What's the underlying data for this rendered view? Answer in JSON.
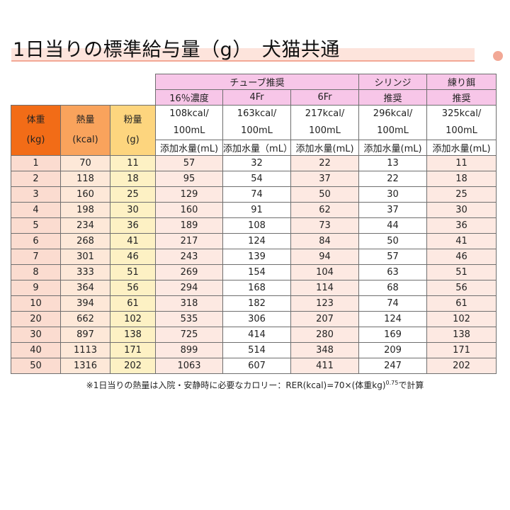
{
  "title": "1日当りの標準給与量（g）　犬猫共通",
  "header": {
    "tube_group": "チューブ推奨",
    "syringe_line1": "シリンジ",
    "syringe_line2": "推奨",
    "neri_line1": "練り餌",
    "neri_line2": "推奨",
    "sub_16": "16％濃度",
    "sub_4fr": "4Fr",
    "sub_6fr": "6Fr",
    "kcal_108": "108kcal/",
    "kcal_163": "163kcal/",
    "kcal_217": "217kcal/",
    "kcal_296": "296kcal/",
    "kcal_325": "325kcal/",
    "per_100ml": "100mL",
    "water_label": "添加水量(mL)",
    "water_label_b": "添加水量（mL）",
    "weight_line1": "体重",
    "weight_line2": "(kg)",
    "energy_line1": "熱量",
    "energy_line2": "(kcal)",
    "powder_line1": "粉量",
    "powder_line2": "(g)"
  },
  "rows": [
    [
      "1",
      "70",
      "11",
      "57",
      "32",
      "22",
      "13",
      "11"
    ],
    [
      "2",
      "118",
      "18",
      "95",
      "54",
      "37",
      "22",
      "18"
    ],
    [
      "3",
      "160",
      "25",
      "129",
      "74",
      "50",
      "30",
      "25"
    ],
    [
      "4",
      "198",
      "30",
      "160",
      "91",
      "62",
      "37",
      "30"
    ],
    [
      "5",
      "234",
      "36",
      "189",
      "108",
      "73",
      "44",
      "36"
    ],
    [
      "6",
      "268",
      "41",
      "217",
      "124",
      "84",
      "50",
      "41"
    ],
    [
      "7",
      "301",
      "46",
      "243",
      "139",
      "94",
      "57",
      "46"
    ],
    [
      "8",
      "333",
      "51",
      "269",
      "154",
      "104",
      "63",
      "51"
    ],
    [
      "9",
      "364",
      "56",
      "294",
      "168",
      "114",
      "68",
      "56"
    ],
    [
      "10",
      "394",
      "61",
      "318",
      "182",
      "123",
      "74",
      "61"
    ],
    [
      "20",
      "662",
      "102",
      "535",
      "306",
      "207",
      "124",
      "102"
    ],
    [
      "30",
      "897",
      "138",
      "725",
      "414",
      "280",
      "169",
      "138"
    ],
    [
      "40",
      "1113",
      "171",
      "899",
      "514",
      "348",
      "209",
      "171"
    ],
    [
      "50",
      "1316",
      "202",
      "1063",
      "607",
      "411",
      "247",
      "202"
    ]
  ],
  "footnote": {
    "text": "※1日当りの熱量は入院・安静時に必要なカロリー：RER(kcal)=70×(体重kg)",
    "exponent": "0.75",
    "suffix": "で計算"
  },
  "colors": {
    "weight_header": "#f26c17",
    "energy_header": "#f9a35c",
    "powder_header": "#fdd57e",
    "pink_header": "#f7c6e8",
    "title_band": "#fde4dc"
  }
}
